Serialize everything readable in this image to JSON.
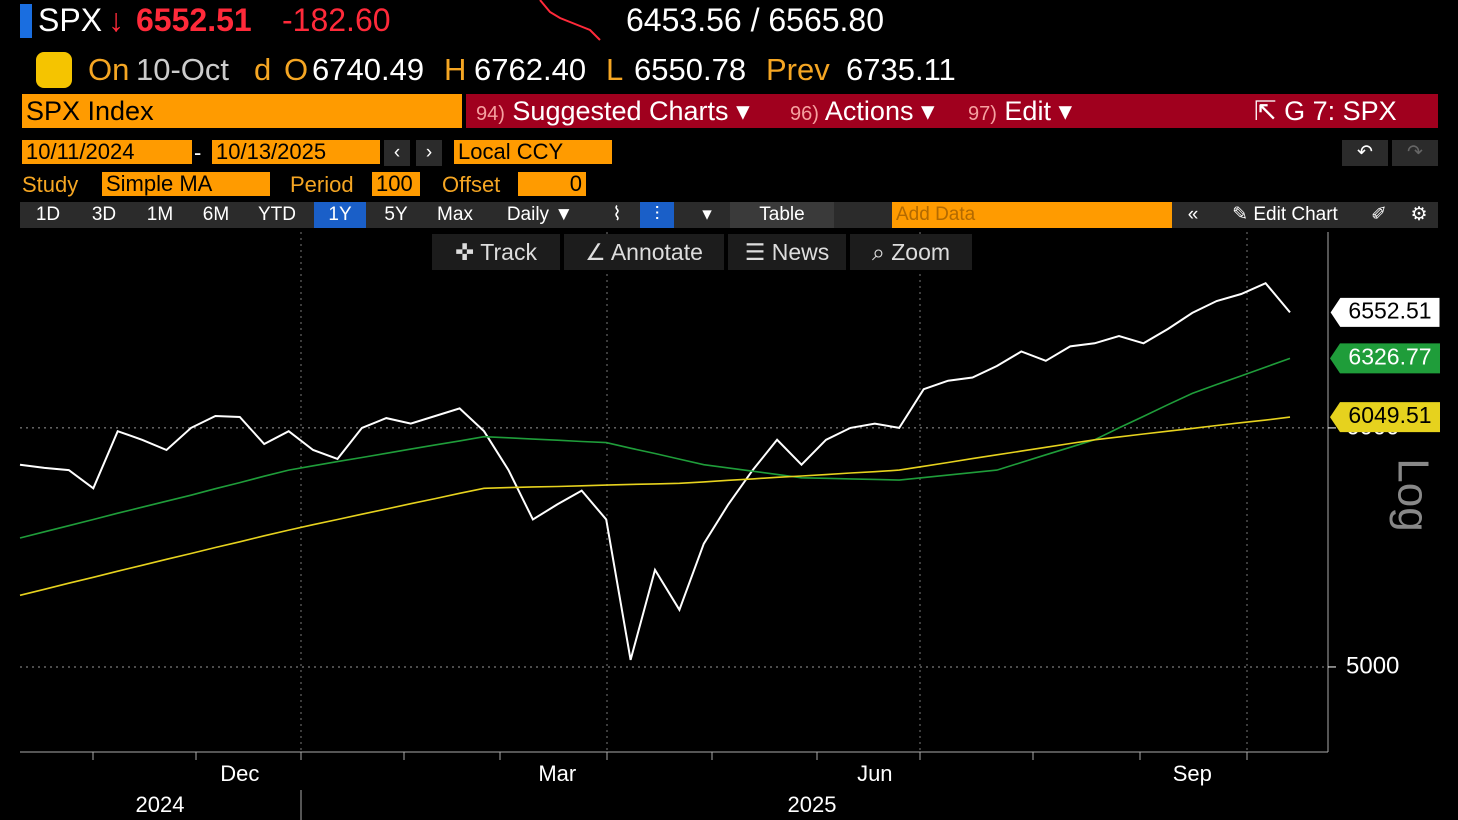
{
  "header": {
    "ticker": "SPX",
    "arrow": "↓",
    "last": "6552.51",
    "change": "-182.60",
    "bid_ask": "6453.56 / 6565.80"
  },
  "quote_line": {
    "on": "On",
    "date": "10-Oct",
    "d": "d",
    "o_label": "O",
    "open": "6740.49",
    "h_label": "H",
    "high": "6762.40",
    "l_label": "L",
    "low": "6550.78",
    "prev_label": "Prev",
    "prev": "6735.11"
  },
  "toolbar": {
    "security": "SPX Index",
    "items": [
      {
        "num": "94)",
        "label": "Suggested Charts"
      },
      {
        "num": "96)",
        "label": "Actions"
      },
      {
        "num": "97)",
        "label": "Edit"
      }
    ],
    "window": "G 7: SPX"
  },
  "range": {
    "start": "10/11/2024",
    "sep": "-",
    "end": "10/13/2025",
    "currency": "Local CCY"
  },
  "study": {
    "label": "Study",
    "value": "Simple MA",
    "period_label": "Period",
    "period": "100",
    "offset_label": "Offset",
    "offset": "0"
  },
  "buttons": {
    "periods": [
      "1D",
      "3D",
      "1M",
      "6M",
      "YTD",
      "1Y",
      "5Y",
      "Max"
    ],
    "frequency": "Daily",
    "table": "Table",
    "add_data": "Add Data",
    "edit_chart": "Edit Chart"
  },
  "chart_tools": [
    "Track",
    "Annotate",
    "News",
    "Zoom"
  ],
  "chart_data": {
    "type": "line",
    "log_scale": true,
    "grid": true,
    "scale_label": "Log",
    "categories": [
      null,
      null,
      null,
      null,
      null,
      null,
      null,
      null,
      null,
      "Dec",
      null,
      null,
      null,
      null,
      null,
      null,
      null,
      null,
      null,
      null,
      null,
      null,
      "Mar",
      null,
      null,
      null,
      null,
      null,
      null,
      null,
      null,
      null,
      null,
      null,
      null,
      "Jun",
      null,
      null,
      null,
      null,
      null,
      null,
      null,
      null,
      null,
      null,
      null,
      null,
      "Sep",
      null,
      null,
      null,
      null
    ],
    "x_group_labels": [
      "2024",
      "2025"
    ],
    "ylim": [
      4686,
      6967
    ],
    "yticks": [
      5000,
      6000
    ],
    "series": [
      {
        "color": "#ffffff",
        "values": [
          5834,
          5820,
          5810,
          5730,
          5985,
          5946,
          5900,
          6000,
          6055,
          6050,
          5927,
          5985,
          5900,
          5860,
          6000,
          6045,
          6020,
          6055,
          6090,
          5985,
          5810,
          5595,
          5660,
          5720,
          5595,
          5027,
          5384,
          5223,
          5493,
          5660,
          5810,
          5946,
          5834,
          5946,
          6000,
          6020,
          6000,
          6180,
          6220,
          6235,
          6290,
          6360,
          6315,
          6385,
          6400,
          6435,
          6400,
          6470,
          6550,
          6610,
          6645,
          6700,
          6552.51
        ]
      },
      {
        "color": "#1f9d3a",
        "values": [
          5517,
          5543,
          5569,
          5595,
          5622,
          5648,
          5674,
          5700,
          5728,
          5755,
          5783,
          5810,
          5829,
          5848,
          5866,
          5885,
          5904,
          5923,
          5941,
          5960,
          5955,
          5949,
          5944,
          5938,
          5933,
          5908,
          5884,
          5859,
          5834,
          5820,
          5805,
          5791,
          5776,
          5774,
          5771,
          5769,
          5766,
          5777,
          5788,
          5799,
          5810,
          5844,
          5878,
          5912,
          5946,
          6000,
          6053,
          6107,
          6160,
          6202,
          6243,
          6285,
          6326.77
        ]
      },
      {
        "color": "#e6d21e",
        "values": [
          5281,
          5305,
          5330,
          5354,
          5379,
          5403,
          5428,
          5452,
          5477,
          5501,
          5526,
          5550,
          5573,
          5595,
          5618,
          5640,
          5663,
          5685,
          5708,
          5730,
          5733,
          5736,
          5738,
          5741,
          5744,
          5747,
          5749,
          5752,
          5758,
          5765,
          5771,
          5778,
          5784,
          5790,
          5797,
          5803,
          5810,
          5827,
          5844,
          5861,
          5878,
          5895,
          5912,
          5929,
          5946,
          5959,
          5972,
          5985,
          5998,
          6011,
          6024,
          6036,
          6049.51
        ]
      }
    ]
  }
}
